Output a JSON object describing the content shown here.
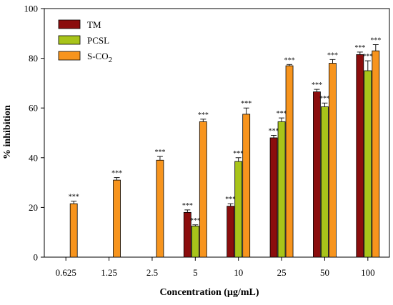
{
  "colors": {
    "TM": "#8b0d0d",
    "PCSL": "#a8c41a",
    "S-CO2": "#f7941d"
  },
  "chart_data": {
    "type": "bar",
    "title": "",
    "xlabel": "Concentration (µg/mL)",
    "ylabel": "% inhibition",
    "ylim": [
      0,
      100
    ],
    "yticks": [
      "0",
      "20",
      "40",
      "60",
      "80",
      "100"
    ],
    "categories": [
      "0.625",
      "1.25",
      "2.5",
      "5",
      "10",
      "25",
      "50",
      "100"
    ],
    "legend_position": "top-left",
    "significance_label": "***",
    "series": [
      {
        "name": "TM",
        "legend_label": "TM",
        "values": [
          null,
          null,
          null,
          18,
          20.5,
          48,
          66.5,
          81.5
        ],
        "errors": [
          null,
          null,
          null,
          1,
          1,
          1,
          1,
          1
        ],
        "sig": [
          false,
          false,
          false,
          true,
          true,
          true,
          true,
          true
        ]
      },
      {
        "name": "PCSL",
        "legend_label": "PCSL",
        "values": [
          null,
          null,
          null,
          12.5,
          38.5,
          54.5,
          60.5,
          75
        ],
        "errors": [
          null,
          null,
          null,
          0.5,
          1.5,
          1.5,
          1.5,
          4
        ],
        "sig": [
          false,
          false,
          false,
          true,
          true,
          true,
          true,
          true
        ]
      },
      {
        "name": "S-CO2",
        "legend_label": "S-CO",
        "legend_sub": "2",
        "values": [
          21.5,
          31,
          39,
          54.5,
          57.5,
          77,
          78,
          83
        ],
        "errors": [
          1,
          1,
          1.5,
          1,
          2.5,
          0.5,
          1.5,
          2.5
        ],
        "sig": [
          true,
          true,
          true,
          true,
          true,
          true,
          true,
          true
        ]
      }
    ]
  }
}
